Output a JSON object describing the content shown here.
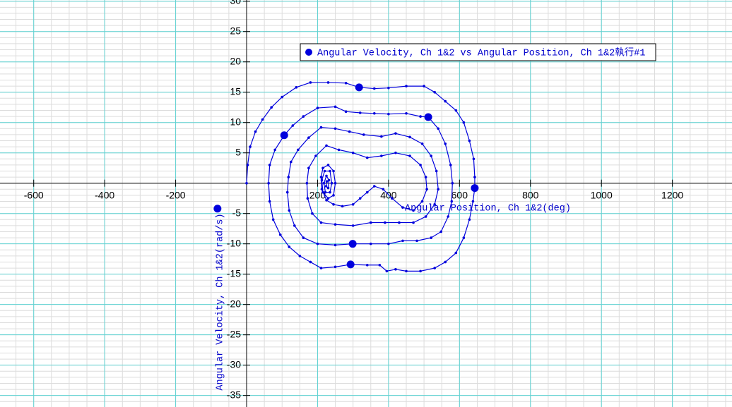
{
  "chart_data": {
    "type": "scatter",
    "xlabel": "Angular Position, Ch 1&2(deg)",
    "ylabel": "Angular Velocity, Ch 1&2(rad/s)",
    "xlim": [
      -695,
      1368
    ],
    "ylim": [
      -36.9,
      30.2
    ],
    "xticks": [
      -600,
      -400,
      -200,
      200,
      400,
      600,
      800,
      1000,
      1200
    ],
    "yticks": [
      30,
      25,
      20,
      15,
      10,
      5,
      -5,
      -10,
      -15,
      -20,
      -25,
      -30,
      -35
    ],
    "xminor": 50,
    "yminor": 1,
    "grid": true,
    "grid_color": "#5fd3d3",
    "minor_grid_color": "#dcdcdc",
    "legend": "top-right",
    "series": [
      {
        "name": "Angular Velocity, Ch 1&2 vs Angular Position, Ch 1&2執行#1",
        "color": "#0000dd",
        "x": [
          0,
          3,
          10,
          25,
          45,
          70,
          100,
          140,
          180,
          230,
          280,
          317,
          360,
          400,
          450,
          500,
          530,
          560,
          590,
          612,
          628,
          640,
          643,
          643,
          638,
          628,
          612,
          590,
          560,
          530,
          490,
          450,
          420,
          395,
          375,
          340,
          293,
          250,
          210,
          180,
          150,
          120,
          95,
          75,
          65,
          62,
          65,
          80,
          106,
          130,
          160,
          200,
          250,
          280,
          320,
          360,
          400,
          450,
          490,
          512,
          540,
          560,
          575,
          580,
          578,
          568,
          548,
          520,
          480,
          440,
          400,
          350,
          299,
          250,
          200,
          160,
          135,
          120,
          115,
          118,
          125,
          145,
          175,
          210,
          250,
          290,
          330,
          380,
          420,
          460,
          495,
          520,
          535,
          540,
          530,
          505,
          470,
          430,
          390,
          350,
          300,
          250,
          210,
          185,
          172,
          170,
          175,
          195,
          225,
          260,
          300,
          340,
          380,
          420,
          460,
          490,
          505,
          508,
          495,
          470,
          440,
          410,
          385,
          360,
          340,
          320,
          300,
          270,
          245,
          225,
          212,
          210,
          215,
          230,
          245,
          250,
          245,
          230,
          215,
          212,
          220,
          235,
          240,
          235,
          222,
          218,
          225,
          232,
          230,
          224,
          226
        ],
        "values": [
          0,
          3,
          6,
          8.5,
          10.5,
          12.5,
          14.2,
          15.8,
          16.6,
          16.6,
          16.5,
          15.8,
          15.6,
          15.7,
          16,
          16,
          15,
          13.5,
          12,
          10,
          7,
          4,
          1,
          -0.8,
          -3,
          -6,
          -9,
          -11.5,
          -13,
          -14,
          -14.5,
          -14.5,
          -14.2,
          -14.5,
          -13.5,
          -13.5,
          -13.4,
          -13.8,
          -14,
          -13,
          -12,
          -10.5,
          -8.5,
          -6,
          -3,
          0,
          3,
          5.5,
          7.9,
          9.5,
          11,
          12.4,
          12.6,
          11.8,
          11.6,
          11.5,
          11.4,
          11.5,
          11,
          10.9,
          9,
          6.5,
          3,
          0,
          -3,
          -5.5,
          -8,
          -9,
          -9.5,
          -9.5,
          -10,
          -10,
          -10,
          -10.2,
          -10,
          -9,
          -7,
          -4.5,
          -1.5,
          1,
          3.5,
          5.5,
          7.5,
          9.2,
          9,
          8.5,
          8,
          7.7,
          8.2,
          7.6,
          6.5,
          4.5,
          2,
          -1,
          -3.5,
          -5.5,
          -6.5,
          -6.5,
          -6.5,
          -6.5,
          -7,
          -6.8,
          -6.5,
          -5,
          -2.5,
          0,
          2.5,
          4.5,
          6.2,
          5.5,
          5,
          4.2,
          4.5,
          5,
          4.5,
          3,
          1,
          -1,
          -3,
          -4.5,
          -4,
          -2.5,
          -1,
          -0.5,
          -1.5,
          -2.5,
          -3.5,
          -3.8,
          -3.5,
          -2.8,
          -1,
          1,
          2.5,
          3,
          2,
          0,
          -2,
          -2.5,
          -1.5,
          0.5,
          2,
          2,
          0,
          -1.5,
          -1.5,
          0,
          1.2,
          0.5,
          -0.8,
          -0.5,
          0.3
        ],
        "marker_x": [
          -82,
          106,
          317,
          512,
          643,
          299,
          293
        ],
        "marker_values": [
          -4.2,
          7.9,
          15.8,
          10.9,
          -0.8,
          -10,
          -13.4
        ]
      }
    ]
  }
}
